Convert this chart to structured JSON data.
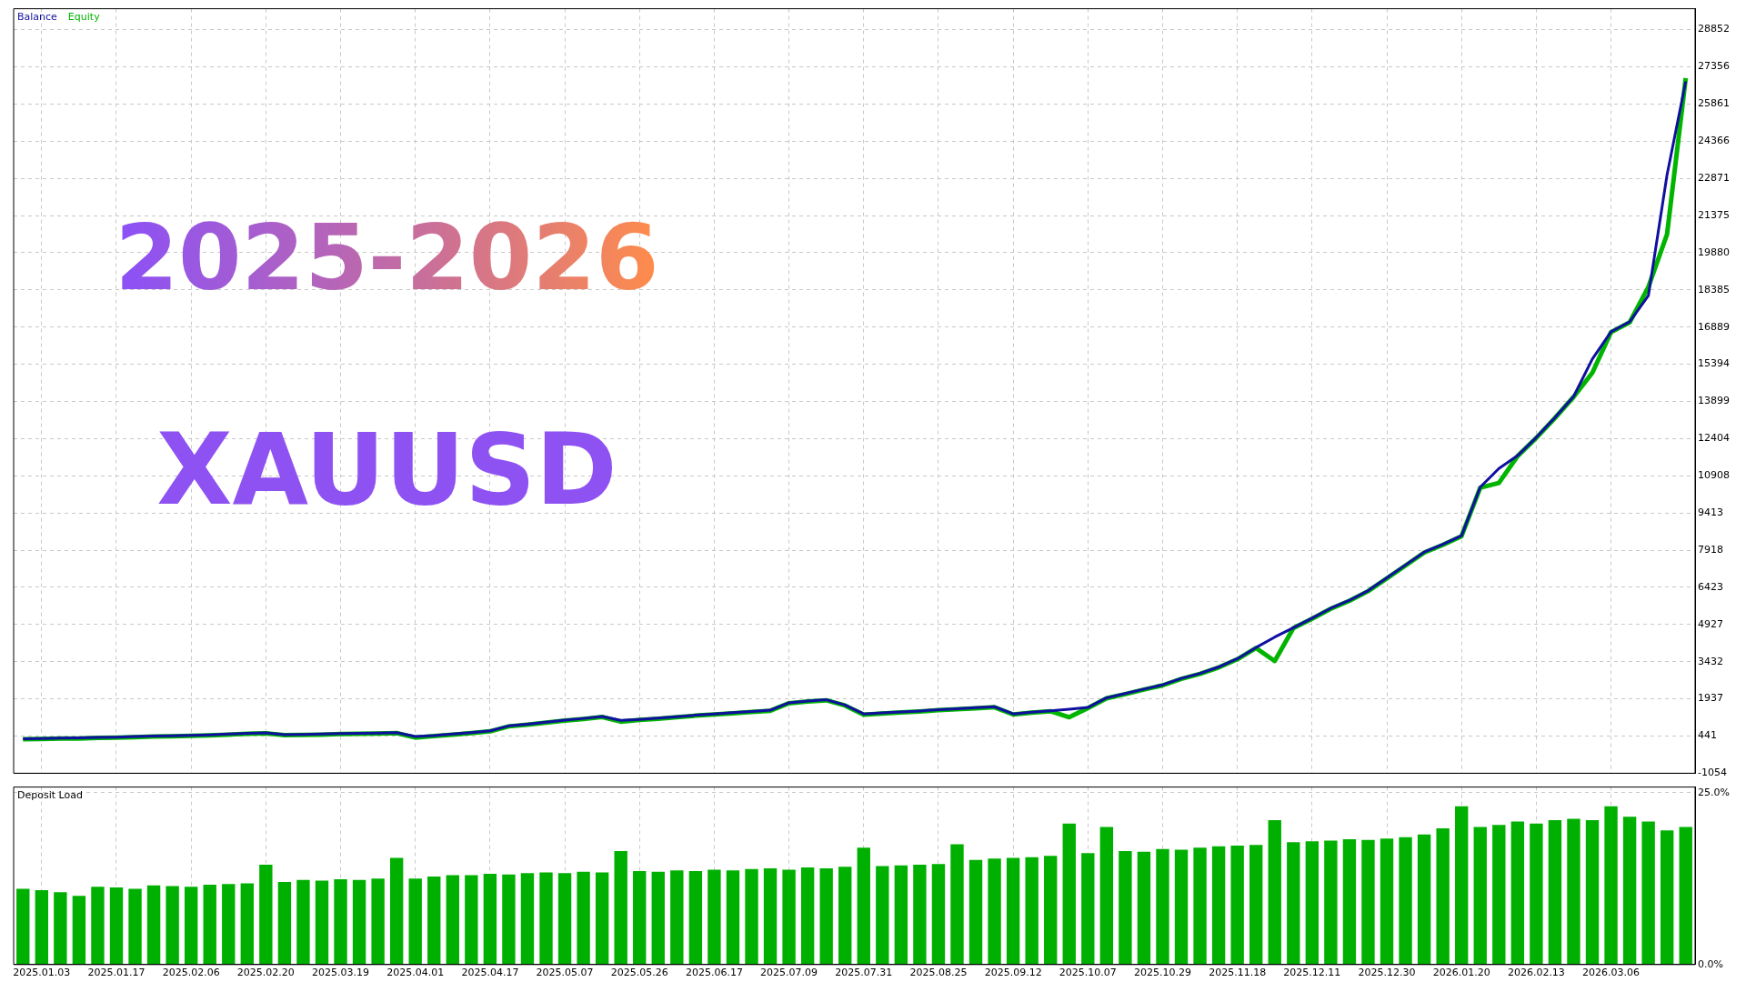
{
  "chart_data": [
    {
      "type": "line",
      "legend": "top left",
      "grid": true,
      "tick_labels": "y",
      "annotations": [
        "2025-2026",
        "XAUUSD"
      ],
      "categories": [
        null,
        "2025.01.03",
        null,
        null,
        null,
        "2025.01.17",
        null,
        null,
        null,
        "2025.02.06",
        null,
        null,
        null,
        "2025.02.20",
        null,
        null,
        null,
        "2025.03.19",
        null,
        null,
        null,
        "2025.04.01",
        null,
        null,
        null,
        "2025.04.17",
        null,
        null,
        null,
        "2025.05.07",
        null,
        null,
        null,
        "2025.05.26",
        null,
        null,
        null,
        "2025.06.17",
        null,
        null,
        null,
        "2025.07.09",
        null,
        null,
        null,
        "2025.07.31",
        null,
        null,
        null,
        "2025.08.25",
        null,
        null,
        null,
        "2025.09.12",
        null,
        null,
        null,
        "2025.10.07",
        null,
        null,
        null,
        "2025.10.29",
        null,
        null,
        null,
        "2025.11.18",
        null,
        null,
        null,
        "2025.12.11",
        null,
        null,
        null,
        "2025.12.30",
        null,
        null,
        null,
        "2026.01.20",
        null,
        null,
        null,
        "2026.02.13",
        null,
        null,
        null,
        "2026.03.06",
        null,
        null,
        null,
        null
      ],
      "ylim": [
        -1054,
        29690
      ],
      "yticks": [
        -1054,
        441,
        1937,
        3432,
        4927,
        6423,
        7918,
        9413,
        10908,
        12404,
        13899,
        15394,
        16889,
        18385,
        19880,
        21375,
        22871,
        24366,
        25861,
        27356,
        28852
      ],
      "series": [
        {
          "name": "Balance",
          "color": "#1010a0",
          "values": [
            330,
            340,
            360,
            370,
            390,
            400,
            420,
            440,
            450,
            470,
            490,
            520,
            550,
            570,
            500,
            510,
            520,
            540,
            550,
            560,
            580,
            420,
            460,
            520,
            580,
            650,
            850,
            920,
            1000,
            1080,
            1150,
            1230,
            1070,
            1110,
            1160,
            1220,
            1280,
            1330,
            1380,
            1430,
            1480,
            1780,
            1850,
            1900,
            1690,
            1330,
            1370,
            1410,
            1450,
            1500,
            1540,
            1580,
            1620,
            1330,
            1400,
            1460,
            1520,
            1590,
            1980,
            2150,
            2330,
            2500,
            2760,
            2960,
            3220,
            3550,
            4000,
            4420,
            4800,
            5180,
            5580,
            5900,
            6290,
            6800,
            7320,
            7840,
            8150,
            8500,
            10450,
            11200,
            11720,
            12450,
            13250,
            14100,
            15600,
            16700,
            17100,
            18150,
            23010,
            26770
          ]
        },
        {
          "name": "Equity",
          "color": "#00b400",
          "values": [
            310,
            320,
            340,
            340,
            370,
            380,
            400,
            420,
            430,
            450,
            470,
            500,
            530,
            550,
            480,
            490,
            500,
            520,
            530,
            540,
            560,
            380,
            440,
            500,
            560,
            630,
            830,
            900,
            980,
            1060,
            1130,
            1210,
            1020,
            1090,
            1140,
            1200,
            1260,
            1310,
            1360,
            1410,
            1460,
            1760,
            1830,
            1880,
            1670,
            1300,
            1350,
            1390,
            1430,
            1480,
            1520,
            1560,
            1600,
            1310,
            1380,
            1440,
            1200,
            1570,
            1960,
            2130,
            2310,
            2480,
            2740,
            2940,
            3200,
            3530,
            3980,
            3460,
            4780,
            5160,
            5560,
            5880,
            6270,
            6780,
            7300,
            7820,
            8130,
            8480,
            10430,
            10620,
            11700,
            12430,
            13230,
            14080,
            15050,
            16680,
            17080,
            18500,
            20620,
            26900
          ]
        }
      ]
    },
    {
      "type": "bar",
      "title": "Deposit Load",
      "grid": true,
      "categories": [
        null,
        "2025.01.03",
        null,
        null,
        null,
        "2025.01.17",
        null,
        null,
        null,
        "2025.02.06",
        null,
        null,
        null,
        "2025.02.20",
        null,
        null,
        null,
        "2025.03.19",
        null,
        null,
        null,
        "2025.04.01",
        null,
        null,
        null,
        "2025.04.17",
        null,
        null,
        null,
        "2025.05.07",
        null,
        null,
        null,
        "2025.05.26",
        null,
        null,
        null,
        "2025.06.17",
        null,
        null,
        null,
        "2025.07.09",
        null,
        null,
        null,
        "2025.07.31",
        null,
        null,
        null,
        "2025.08.25",
        null,
        null,
        null,
        "2025.09.12",
        null,
        null,
        null,
        "2025.10.07",
        null,
        null,
        null,
        "2025.10.29",
        null,
        null,
        null,
        "2025.11.18",
        null,
        null,
        null,
        "2025.12.11",
        null,
        null,
        null,
        "2025.12.30",
        null,
        null,
        null,
        "2026.01.20",
        null,
        null,
        null,
        "2026.02.13",
        null,
        null,
        null,
        "2026.03.06",
        null,
        null,
        null,
        null
      ],
      "ylim": [
        0,
        25.8
      ],
      "yticks": [
        {
          "value": 0,
          "label": "0.0%"
        },
        {
          "value": 25,
          "label": "25.0%"
        }
      ],
      "color": "#00b000",
      "values": [
        11.0,
        10.8,
        10.5,
        10.0,
        11.3,
        11.2,
        11.0,
        11.5,
        11.4,
        11.3,
        11.6,
        11.7,
        11.8,
        14.5,
        12.0,
        12.3,
        12.2,
        12.4,
        12.3,
        12.5,
        15.5,
        12.5,
        12.8,
        13.0,
        13.0,
        13.2,
        13.1,
        13.3,
        13.4,
        13.3,
        13.5,
        13.4,
        16.5,
        13.6,
        13.5,
        13.7,
        13.6,
        13.8,
        13.7,
        13.9,
        14.0,
        13.8,
        14.1,
        14.0,
        14.2,
        17.0,
        14.3,
        14.4,
        14.5,
        14.6,
        17.5,
        15.2,
        15.4,
        15.5,
        15.6,
        15.8,
        20.5,
        16.2,
        20.0,
        16.5,
        16.4,
        16.8,
        16.7,
        17.0,
        17.2,
        17.3,
        17.4,
        21.0,
        17.8,
        17.9,
        18.0,
        18.2,
        18.1,
        18.3,
        18.5,
        18.9,
        19.8,
        23.0,
        20.0,
        20.3,
        20.8,
        20.5,
        21.0,
        21.2,
        21.0,
        23.0,
        21.5,
        20.8,
        19.5,
        20.0
      ]
    }
  ]
}
